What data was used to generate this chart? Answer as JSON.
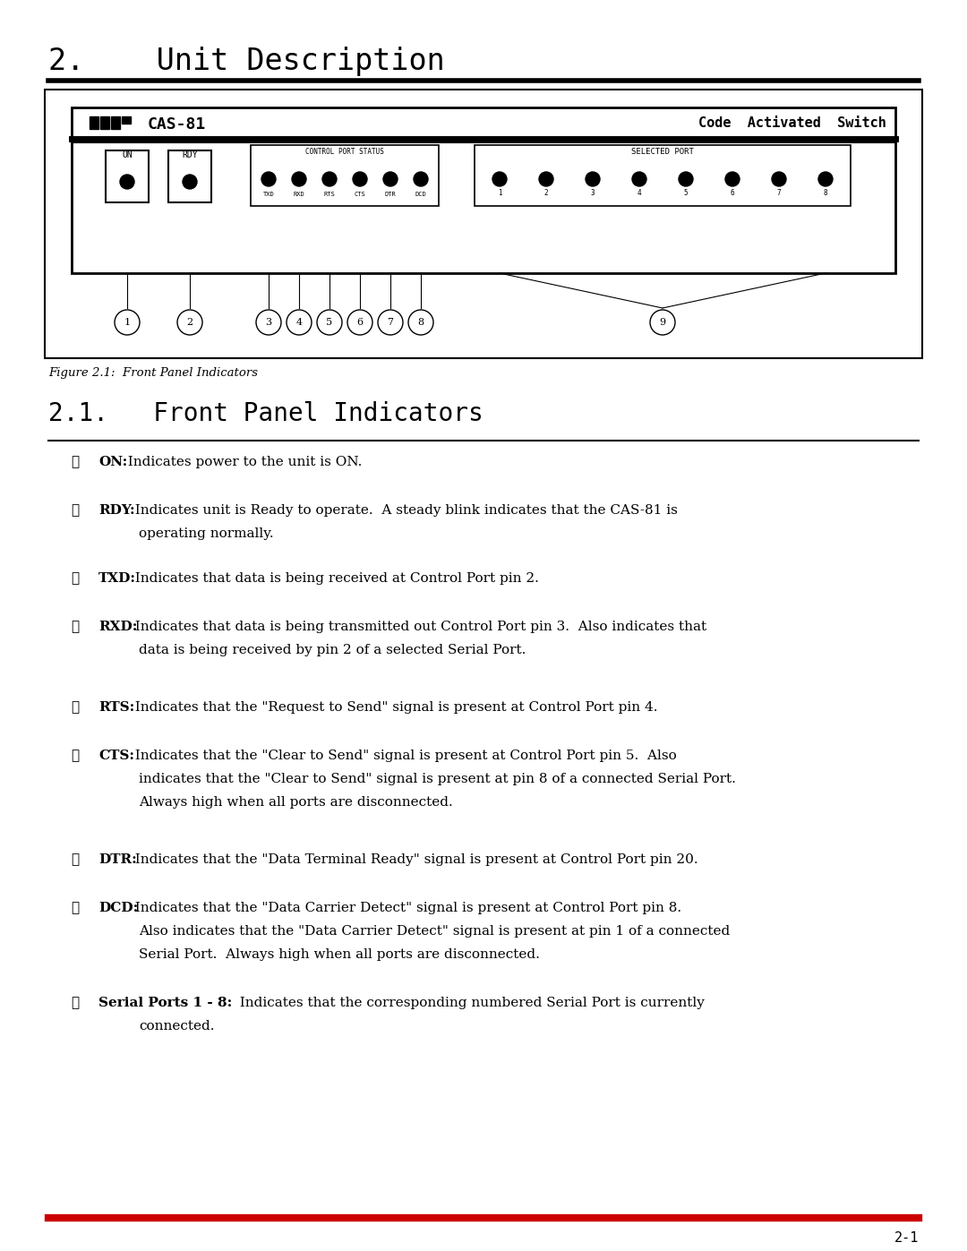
{
  "title": "2.    Unit Description",
  "subtitle": "2.1.   Front Panel Indicators",
  "figure_caption": "Figure 2.1:  Front Panel Indicators",
  "page_number": "2-1",
  "bg_color": "#ffffff",
  "title_color": "#000000",
  "red_line_color": "#cc0000",
  "items": [
    {
      "num": "①",
      "bold": "ON:",
      "text": "  Indicates power to the unit is ON.",
      "lines": 1
    },
    {
      "num": "②",
      "bold": "RDY:",
      "text": "  Indicates unit is Ready to operate.  A steady blink indicates that the CAS-81 is",
      "line2": "operating normally.",
      "lines": 2
    },
    {
      "num": "③",
      "bold": "TXD:",
      "text": "  Indicates that data is being received at Control Port pin 2.",
      "lines": 1
    },
    {
      "num": "④",
      "bold": "RXD:",
      "text": "  Indicates that data is being transmitted out Control Port pin 3.  Also indicates that",
      "line2": "data is being received by pin 2 of a selected Serial Port.",
      "lines": 2
    },
    {
      "num": "⑤",
      "bold": "RTS:",
      "text": "  Indicates that the \"Request to Send\" signal is present at Control Port pin 4.",
      "lines": 1
    },
    {
      "num": "⑥",
      "bold": "CTS:",
      "text": "  Indicates that the \"Clear to Send\" signal is present at Control Port pin 5.  Also",
      "line2": "indicates that the \"Clear to Send\" signal is present at pin 8 of a connected Serial Port.",
      "line3": "Always high when all ports are disconnected.",
      "lines": 3
    },
    {
      "num": "⑦",
      "bold": "DTR:",
      "text": "  Indicates that the \"Data Terminal Ready\" signal is present at Control Port pin 20.",
      "lines": 1
    },
    {
      "num": "⑧",
      "bold": "DCD:",
      "text": "  Indicates that the \"Data Carrier Detect\" signal is present at Control Port pin 8.",
      "line2": "Also indicates that the \"Data Carrier Detect\" signal is present at pin 1 of a connected",
      "line3": "Serial Port.  Always high when all ports are disconnected.",
      "lines": 3
    },
    {
      "num": "⑨",
      "bold": "Serial Ports 1 - 8:",
      "text": "  Indicates that the corresponding numbered Serial Port is currently",
      "line2": "connected.",
      "lines": 2
    }
  ]
}
